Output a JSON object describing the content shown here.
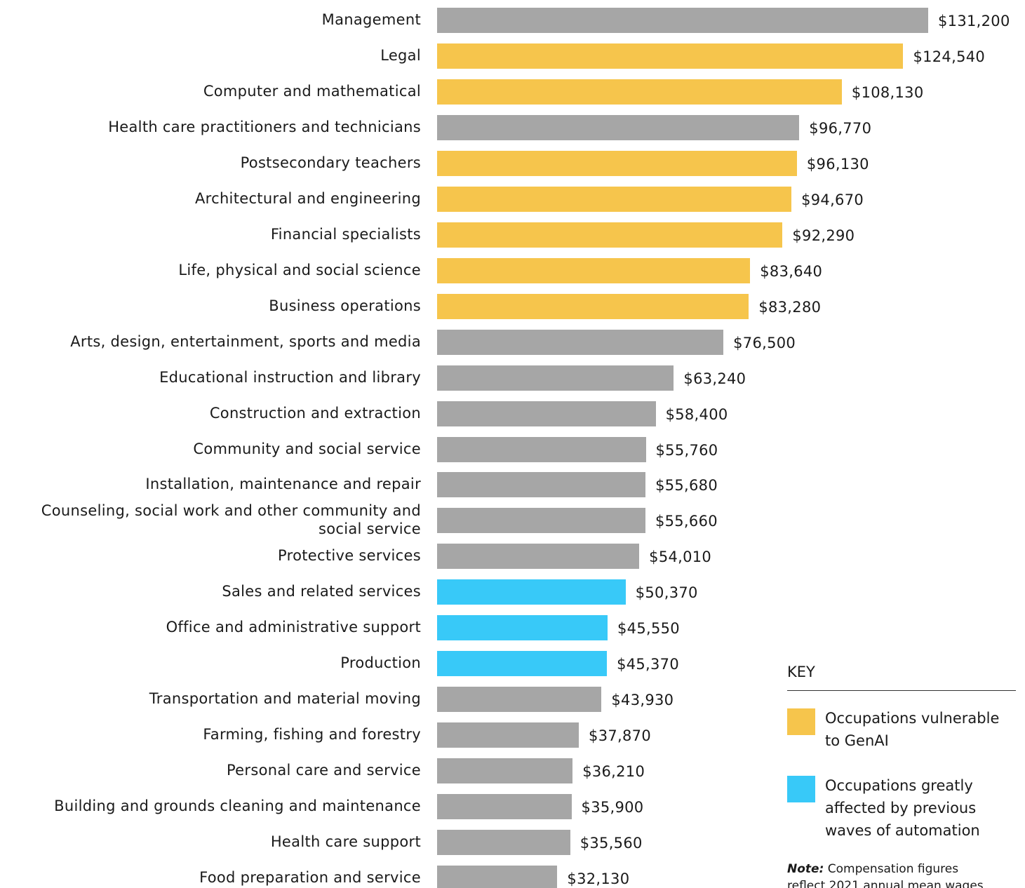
{
  "chart_data": {
    "type": "bar",
    "orientation": "horizontal",
    "categories": [
      "Management",
      "Legal",
      "Computer and mathematical",
      "Health care practitioners and technicians",
      "Postsecondary teachers",
      "Architectural and engineering",
      "Financial specialists",
      "Life, physical and social science",
      "Business operations",
      "Arts, design, entertainment, sports and media",
      "Educational instruction and library",
      "Construction and extraction",
      "Community and social service",
      "Installation, maintenance and repair",
      "Counseling, social work and other community and social service",
      "Protective services",
      "Sales and related services",
      "Office and administrative support",
      "Production",
      "Transportation and material moving",
      "Farming, fishing and forestry",
      "Personal care and service",
      "Building and grounds cleaning and maintenance",
      "Health care support",
      "Food preparation and service"
    ],
    "values": [
      131200,
      124540,
      108130,
      96770,
      96130,
      94670,
      92290,
      83640,
      83280,
      76500,
      63240,
      58400,
      55760,
      55680,
      55660,
      54010,
      50370,
      45550,
      45370,
      43930,
      37870,
      36210,
      35900,
      35560,
      32130
    ],
    "value_labels": [
      "$131,200",
      "$124,540",
      "$108,130",
      "$96,770",
      "$96,130",
      "$94,670",
      "$92,290",
      "$83,640",
      "$83,280",
      "$76,500",
      "$63,240",
      "$58,400",
      "$55,760",
      "$55,680",
      "$55,660",
      "$54,010",
      "$50,370",
      "$45,550",
      "$45,370",
      "$43,930",
      "$37,870",
      "$36,210",
      "$35,900",
      "$35,560",
      "$32,130"
    ],
    "colors": [
      "#a6a6a6",
      "#f6c54c",
      "#f6c54c",
      "#a6a6a6",
      "#f6c54c",
      "#f6c54c",
      "#f6c54c",
      "#f6c54c",
      "#f6c54c",
      "#a6a6a6",
      "#a6a6a6",
      "#a6a6a6",
      "#a6a6a6",
      "#a6a6a6",
      "#a6a6a6",
      "#a6a6a6",
      "#38c9f8",
      "#38c9f8",
      "#38c9f8",
      "#a6a6a6",
      "#a6a6a6",
      "#a6a6a6",
      "#a6a6a6",
      "#a6a6a6",
      "#a6a6a6"
    ],
    "legend_title": "KEY",
    "legend": [
      {
        "name": "Occupations vulnerable to GenAI",
        "color": "#f6c54c"
      },
      {
        "name": "Occupations greatly affected by previous waves of automation",
        "color": "#38c9f8"
      }
    ],
    "note_label": "Note:",
    "note": "Compensation figures reflect 2021 annual mean wages"
  }
}
